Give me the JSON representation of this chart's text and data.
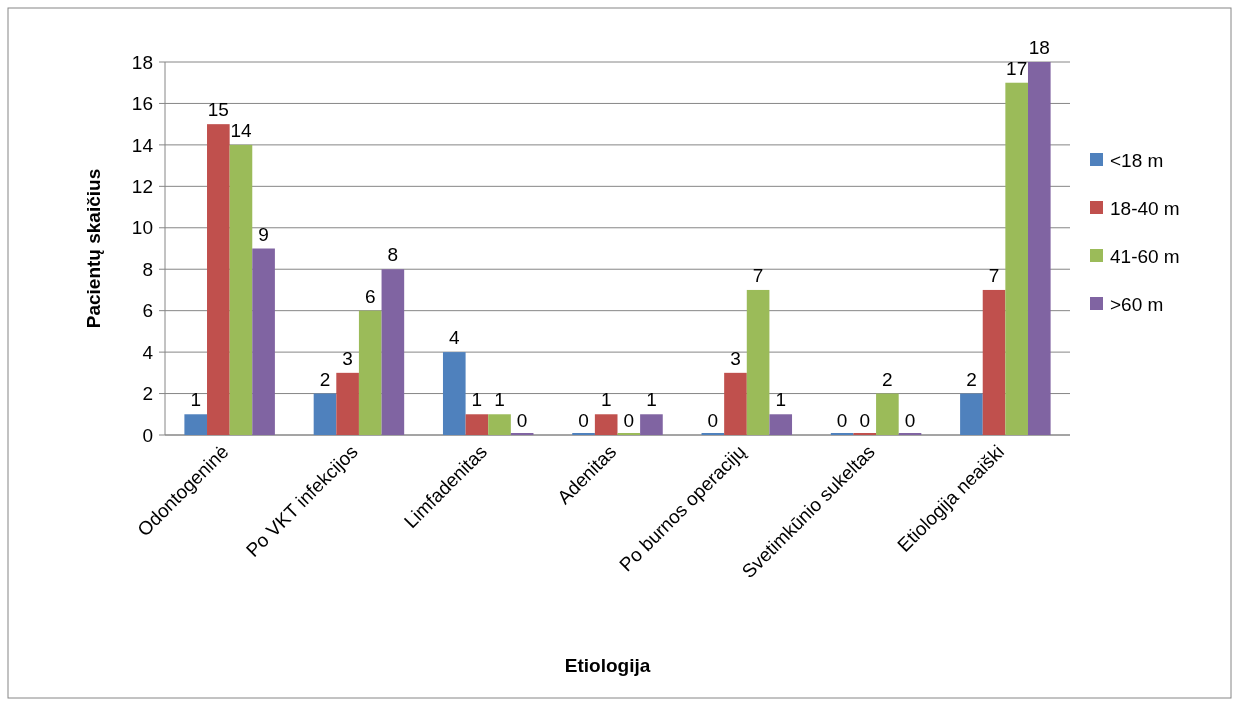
{
  "chart_data": {
    "type": "bar",
    "xlabel": "Etiologija",
    "ylabel": "Pacientų skaičius",
    "categories": [
      "Odontogeninė",
      "Po VKT infekcijos",
      "Limfadenitas",
      "Adenitas",
      "Po burnos operacijų",
      "Svetimkūnio sukeltas",
      "Etiologija neaiški"
    ],
    "series": [
      {
        "name": "<18 m",
        "color": "#4f81bd",
        "values": [
          1,
          2,
          4,
          0,
          0,
          0,
          2
        ]
      },
      {
        "name": "18-40 m",
        "color": "#c0504d",
        "values": [
          15,
          3,
          1,
          1,
          3,
          0,
          7
        ]
      },
      {
        "name": "41-60 m",
        "color": "#9bbb59",
        "values": [
          14,
          6,
          1,
          0,
          7,
          2,
          17
        ]
      },
      {
        "name": ">60 m",
        "color": "#8064a2",
        "values": [
          9,
          8,
          0,
          1,
          1,
          0,
          18
        ]
      }
    ],
    "ylim": [
      0,
      18
    ],
    "yticks": [
      0,
      2,
      4,
      6,
      8,
      10,
      12,
      14,
      16,
      18
    ],
    "grid": "y",
    "legend": "right",
    "data_labels": true
  }
}
